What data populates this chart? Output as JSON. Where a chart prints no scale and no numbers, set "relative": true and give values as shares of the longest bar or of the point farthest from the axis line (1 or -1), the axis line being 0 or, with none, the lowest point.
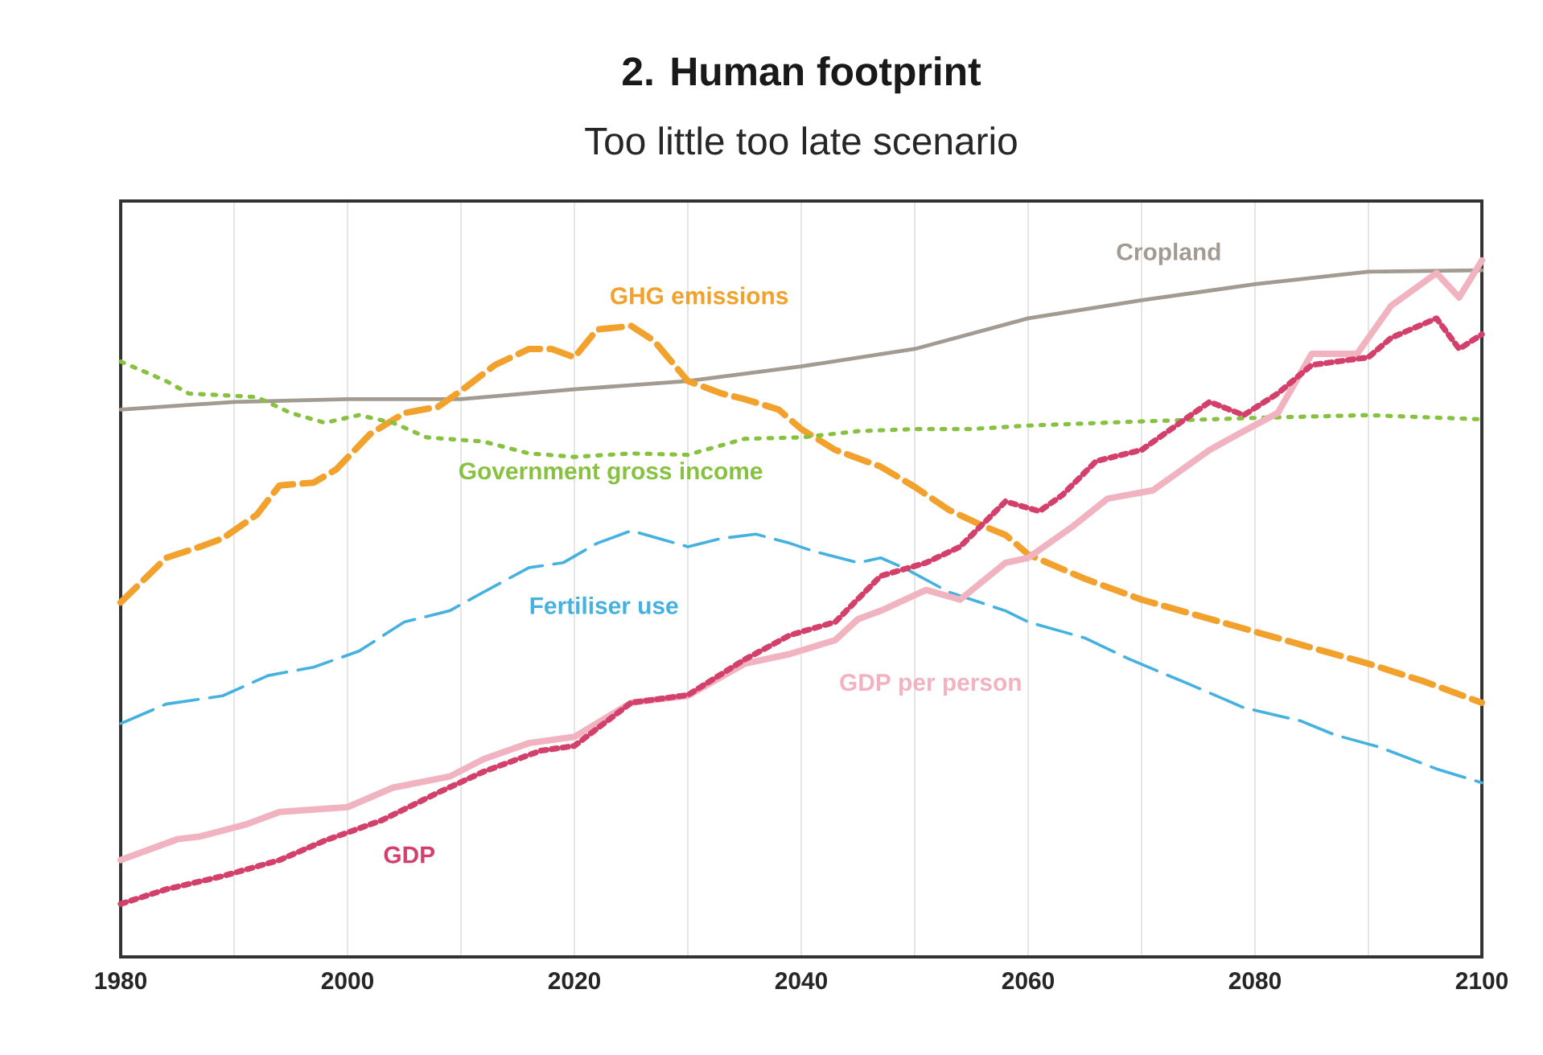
{
  "chart_data": {
    "type": "line",
    "title": "2. Human footprint",
    "subtitle": "Too little too late scenario",
    "relative": true,
    "grid": "x",
    "xlim": [
      1980,
      2100
    ],
    "xticks": [
      1980,
      {
        "value": 1990,
        "label": null
      },
      2000,
      {
        "value": 2010,
        "label": null
      },
      2020,
      {
        "value": 2030,
        "label": null
      },
      2040,
      {
        "value": 2050,
        "label": null
      },
      2060,
      {
        "value": 2070,
        "label": null
      },
      2080,
      {
        "value": 2090,
        "label": null
      },
      2100
    ],
    "series": [
      {
        "name": "Cropland",
        "color": "#a39a92",
        "line_style": "solid",
        "x": [
          1980,
          1990,
          2000,
          2010,
          2020,
          2030,
          2040,
          2050,
          2060,
          2070,
          2080,
          2090,
          2100
        ],
        "values": [
          0.786,
          0.797,
          0.801,
          0.801,
          0.815,
          0.827,
          0.848,
          0.873,
          0.917,
          0.943,
          0.966,
          0.984,
          0.986
        ]
      },
      {
        "name": "GHG emissions",
        "color": "#f2a22c",
        "line_style": "dashed",
        "x": [
          1980,
          1984,
          1987,
          1989,
          1992,
          1994,
          1997,
          1999,
          2002,
          2005,
          2008,
          2010,
          2013,
          2016,
          2018,
          2020,
          2022,
          2025,
          2027,
          2030,
          2033,
          2035,
          2038,
          2040,
          2043,
          2047,
          2050,
          2053,
          2056,
          2058,
          2060,
          2065,
          2070,
          2075,
          2080,
          2085,
          2090,
          2095,
          2100
        ],
        "values": [
          0.509,
          0.573,
          0.589,
          0.601,
          0.635,
          0.677,
          0.681,
          0.7,
          0.751,
          0.781,
          0.79,
          0.813,
          0.85,
          0.873,
          0.873,
          0.861,
          0.901,
          0.906,
          0.885,
          0.827,
          0.809,
          0.801,
          0.786,
          0.758,
          0.728,
          0.704,
          0.675,
          0.642,
          0.619,
          0.606,
          0.578,
          0.543,
          0.513,
          0.49,
          0.467,
          0.444,
          0.421,
          0.395,
          0.365
        ]
      },
      {
        "name": "Government gross income",
        "color": "#86c13f",
        "line_style": "dotted",
        "x": [
          1980,
          1984,
          1986,
          1992,
          1995,
          1998,
          2001,
          2004,
          2007,
          2012,
          2016,
          2020,
          2025,
          2030,
          2035,
          2040,
          2045,
          2050,
          2055,
          2060,
          2070,
          2080,
          2090,
          2100
        ],
        "values": [
          0.855,
          0.827,
          0.809,
          0.804,
          0.781,
          0.767,
          0.778,
          0.767,
          0.746,
          0.74,
          0.723,
          0.718,
          0.723,
          0.721,
          0.744,
          0.746,
          0.755,
          0.758,
          0.758,
          0.763,
          0.769,
          0.774,
          0.778,
          0.772
        ]
      },
      {
        "name": "Fertiliser use",
        "color": "#45b1e0",
        "line_style": "dashed",
        "x": [
          1980,
          1984,
          1989,
          1993,
          1997,
          2001,
          2005,
          2009,
          2012,
          2016,
          2019,
          2022,
          2025,
          2030,
          2033,
          2036,
          2039,
          2041,
          2045,
          2047,
          2049,
          2053,
          2058,
          2060,
          2065,
          2069,
          2074,
          2079,
          2084,
          2087,
          2091,
          2096,
          2100
        ],
        "values": [
          0.335,
          0.363,
          0.375,
          0.404,
          0.416,
          0.439,
          0.481,
          0.497,
          0.524,
          0.559,
          0.566,
          0.594,
          0.612,
          0.589,
          0.601,
          0.607,
          0.594,
          0.583,
          0.566,
          0.573,
          0.559,
          0.524,
          0.497,
          0.481,
          0.458,
          0.427,
          0.393,
          0.358,
          0.339,
          0.319,
          0.301,
          0.27,
          0.25
        ]
      },
      {
        "name": "GDP per person",
        "color": "#f2b3c1",
        "line_style": "solid",
        "x": [
          1980,
          1985,
          1987,
          1991,
          1994,
          2000,
          2004,
          2009,
          2012,
          2016,
          2020,
          2025,
          2030,
          2035,
          2039,
          2043,
          2045,
          2047,
          2051,
          2054,
          2058,
          2060,
          2064,
          2067,
          2071,
          2076,
          2079,
          2082,
          2085,
          2089,
          2092,
          2096,
          2098,
          2100
        ],
        "values": [
          0.139,
          0.169,
          0.173,
          0.19,
          0.208,
          0.215,
          0.243,
          0.259,
          0.284,
          0.307,
          0.316,
          0.365,
          0.375,
          0.421,
          0.435,
          0.455,
          0.485,
          0.497,
          0.527,
          0.513,
          0.566,
          0.573,
          0.619,
          0.658,
          0.67,
          0.728,
          0.755,
          0.781,
          0.866,
          0.866,
          0.935,
          0.982,
          0.947,
          1
        ]
      },
      {
        "name": "GDP",
        "color": "#d3406b",
        "line_style": "dotted",
        "x": [
          1980,
          1984,
          1989,
          1994,
          1998,
          2003,
          2008,
          2012,
          2017,
          2020,
          2025,
          2030,
          2035,
          2039,
          2043,
          2047,
          2051,
          2054,
          2058,
          2061,
          2063,
          2066,
          2070,
          2076,
          2079,
          2082,
          2085,
          2090,
          2092,
          2096,
          2098,
          2100
        ],
        "values": [
          0.076,
          0.097,
          0.116,
          0.139,
          0.167,
          0.196,
          0.236,
          0.266,
          0.296,
          0.303,
          0.365,
          0.376,
          0.427,
          0.462,
          0.481,
          0.547,
          0.566,
          0.589,
          0.654,
          0.64,
          0.663,
          0.712,
          0.728,
          0.797,
          0.778,
          0.809,
          0.85,
          0.861,
          0.889,
          0.917,
          0.873,
          0.894
        ]
      }
    ]
  }
}
